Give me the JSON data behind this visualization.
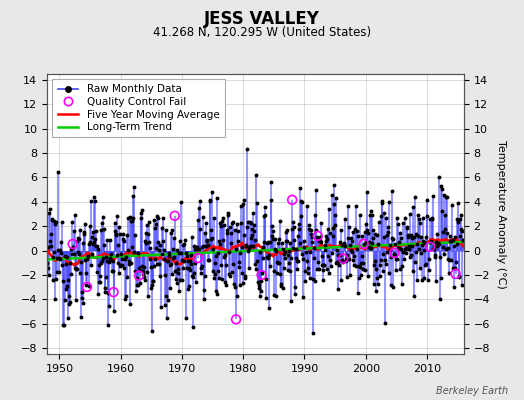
{
  "title": "JESS VALLEY",
  "subtitle": "41.268 N, 120.295 W (United States)",
  "watermark": "Berkeley Earth",
  "ylabel": "Temperature Anomaly (°C)",
  "xlim": [
    1948,
    2016
  ],
  "ylim": [
    -8.5,
    14.5
  ],
  "yticks": [
    -8,
    -6,
    -4,
    -2,
    0,
    2,
    4,
    6,
    8,
    10,
    12,
    14
  ],
  "xticks": [
    1950,
    1960,
    1970,
    1980,
    1990,
    2000,
    2010
  ],
  "start_year": 1948,
  "end_year": 2015,
  "seed": 12345,
  "bg_color": "#e8e8e8",
  "plot_bg_color": "#ffffff",
  "line_color": "#4444ff",
  "dot_color": "#000000",
  "moving_avg_color": "#ff0000",
  "trend_color": "#00cc00",
  "qc_fail_color": "#ff00ff",
  "legend_fontsize": 7.5,
  "title_fontsize": 12,
  "subtitle_fontsize": 8.5,
  "tick_fontsize": 8
}
